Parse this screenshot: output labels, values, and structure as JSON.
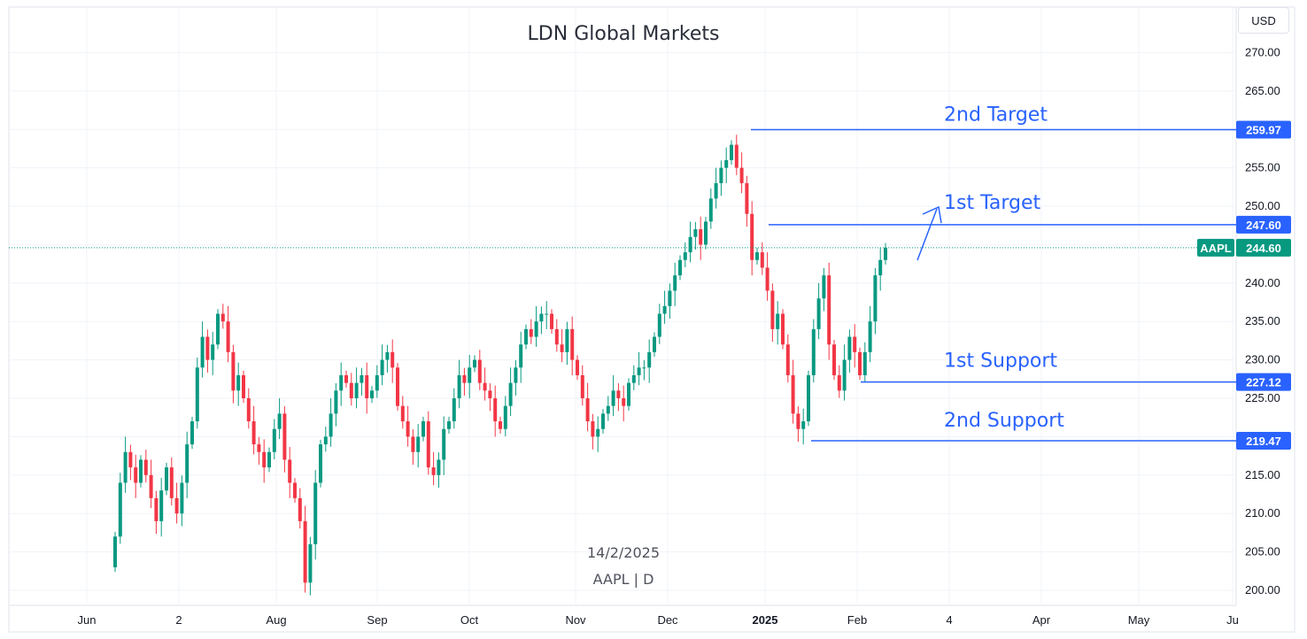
{
  "chart_data": {
    "type": "candlestick",
    "title": "LDN Global Markets",
    "symbol": "AAPL",
    "interval": "D",
    "date": "14/2/2025",
    "symbol_interval": "AAPL | D",
    "currency": "USD",
    "last_price": "244.60",
    "ylim": [
      198,
      273
    ],
    "y_ticks": [
      "200.00",
      "205.00",
      "210.00",
      "215.00",
      "220.00",
      "225.00",
      "230.00",
      "235.00",
      "240.00",
      "245.00",
      "250.00",
      "255.00",
      "260.00",
      "265.00",
      "270.00"
    ],
    "x_ticks": [
      {
        "label": "Jun",
        "bold": false
      },
      {
        "label": "2",
        "bold": false
      },
      {
        "label": "Aug",
        "bold": false
      },
      {
        "label": "Sep",
        "bold": false
      },
      {
        "label": "Oct",
        "bold": false
      },
      {
        "label": "Nov",
        "bold": false
      },
      {
        "label": "Dec",
        "bold": false
      },
      {
        "label": "2025",
        "bold": true
      },
      {
        "label": "Feb",
        "bold": false
      },
      {
        "label": "4",
        "bold": false
      },
      {
        "label": "Apr",
        "bold": false
      },
      {
        "label": "May",
        "bold": false
      },
      {
        "label": "Ju",
        "bold": false
      }
    ],
    "levels": [
      {
        "name": "2nd Target",
        "value": 259.97,
        "label": "259.97"
      },
      {
        "name": "1st Target",
        "value": 247.6,
        "label": "247.60"
      },
      {
        "name": "1st Support",
        "value": 227.12,
        "label": "227.12"
      },
      {
        "name": "2nd Support",
        "value": 219.47,
        "label": "219.47"
      }
    ],
    "closes": [
      207,
      214,
      218,
      216,
      214,
      217,
      215,
      212,
      209,
      213,
      216,
      212,
      210,
      214,
      219,
      222,
      229,
      233,
      230,
      232,
      236,
      235,
      231,
      226,
      228,
      225,
      222,
      219,
      218,
      216,
      218,
      221,
      223,
      217,
      214,
      212,
      209,
      201,
      206,
      214,
      219,
      220,
      223,
      226,
      228,
      227,
      225,
      227,
      228,
      225,
      226,
      228,
      230,
      231,
      229,
      224,
      222,
      220,
      218,
      220,
      222,
      216,
      215,
      217,
      221,
      222,
      225,
      228,
      227,
      229,
      230,
      227,
      226,
      225,
      222,
      221,
      224,
      227,
      229,
      232,
      234,
      233,
      235,
      236,
      236,
      234,
      232,
      231,
      234,
      230,
      228,
      225,
      222,
      220,
      221,
      223,
      224,
      226,
      225,
      224,
      227,
      228,
      229,
      229,
      231,
      233,
      236,
      237,
      239,
      241,
      243,
      244,
      246,
      247,
      245,
      248,
      251,
      253,
      255,
      256,
      258,
      255,
      253,
      249,
      243,
      244,
      242,
      239,
      234,
      236,
      232,
      228,
      223,
      221,
      222,
      228,
      234,
      238,
      241,
      232,
      228,
      226,
      230,
      233,
      231,
      228,
      231,
      235,
      241,
      243,
      244.6
    ]
  },
  "colors": {
    "up": "#089981",
    "down": "#f23645",
    "level": "#2962ff",
    "grid": "#f0f3fa",
    "axis": "#e0e3eb"
  }
}
